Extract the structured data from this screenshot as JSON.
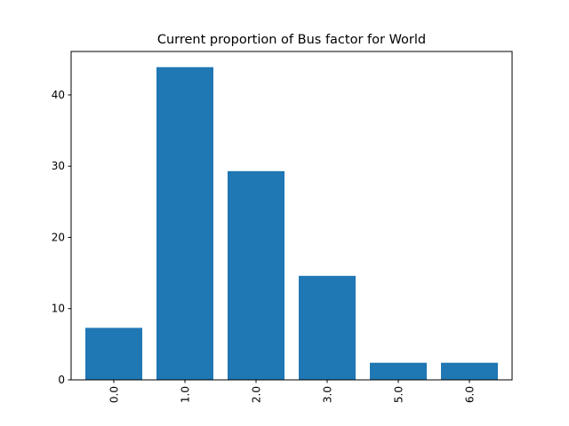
{
  "chart_data": {
    "type": "bar",
    "title": "Current proportion of Bus factor for World",
    "xlabel": "",
    "ylabel": "",
    "categories": [
      "0.0",
      "1.0",
      "2.0",
      "3.0",
      "5.0",
      "6.0"
    ],
    "values": [
      7.3,
      43.9,
      29.3,
      14.6,
      2.4,
      2.4
    ],
    "ylim": [
      0,
      46.1
    ],
    "yticks": [
      0,
      10,
      20,
      30,
      40
    ],
    "x_tick_rotation": "vertical",
    "grid": false,
    "legend": "none",
    "bar_color": "#1f77b4"
  }
}
